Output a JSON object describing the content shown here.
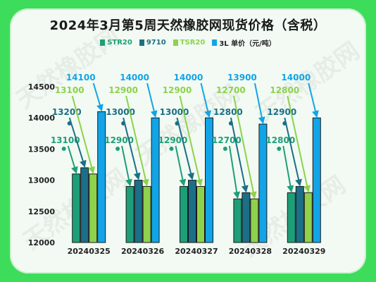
{
  "title": "2024年3月第5周天然橡胶网现货价格（含税）",
  "watermark": "天然橡胶网",
  "legend": [
    {
      "label": "STR20",
      "color": "#1e9e78"
    },
    {
      "label": "9710",
      "color": "#1b6f86"
    },
    {
      "label": "TSR20",
      "color": "#8ed14d"
    },
    {
      "label": "3L 单价（元/吨）",
      "color": "#12a4e6"
    }
  ],
  "colors": {
    "background": "#3ddc5a",
    "panel": "#f2faf3"
  },
  "chart_data": {
    "type": "bar",
    "title": "2024年3月第5周天然橡胶网现货价格（含税）",
    "categories": [
      "20240325",
      "20240326",
      "20240327",
      "20240328",
      "20240329"
    ],
    "series": [
      {
        "name": "STR20",
        "values": [
          13100,
          12900,
          12900,
          12700,
          12800
        ]
      },
      {
        "name": "9710",
        "values": [
          13200,
          13000,
          13000,
          12800,
          12900
        ]
      },
      {
        "name": "TSR20",
        "values": [
          13100,
          12900,
          12900,
          12700,
          12800
        ]
      },
      {
        "name": "3L 单价（元/吨）",
        "values": [
          14100,
          14000,
          14000,
          13900,
          14000
        ]
      }
    ],
    "ylim": [
      12000,
      14500
    ],
    "yticks": [
      12000,
      12500,
      13000,
      13500,
      14000,
      14500
    ],
    "grid": false,
    "legend_position": "top"
  }
}
